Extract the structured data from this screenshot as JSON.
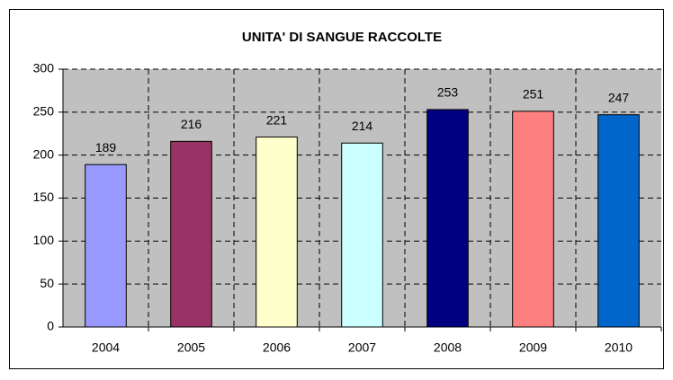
{
  "chart_data": {
    "type": "bar",
    "title": "UNITA' DI SANGUE RACCOLTE",
    "categories": [
      "2004",
      "2005",
      "2006",
      "2007",
      "2008",
      "2009",
      "2010"
    ],
    "values": [
      189,
      216,
      221,
      214,
      253,
      251,
      247
    ],
    "colors": [
      "#9999ff",
      "#993366",
      "#ffffcc",
      "#ccffff",
      "#000080",
      "#ff8080",
      "#0066cc"
    ],
    "ylim": [
      0,
      300
    ],
    "yticks": [
      0,
      50,
      100,
      150,
      200,
      250,
      300
    ],
    "grid": true
  }
}
